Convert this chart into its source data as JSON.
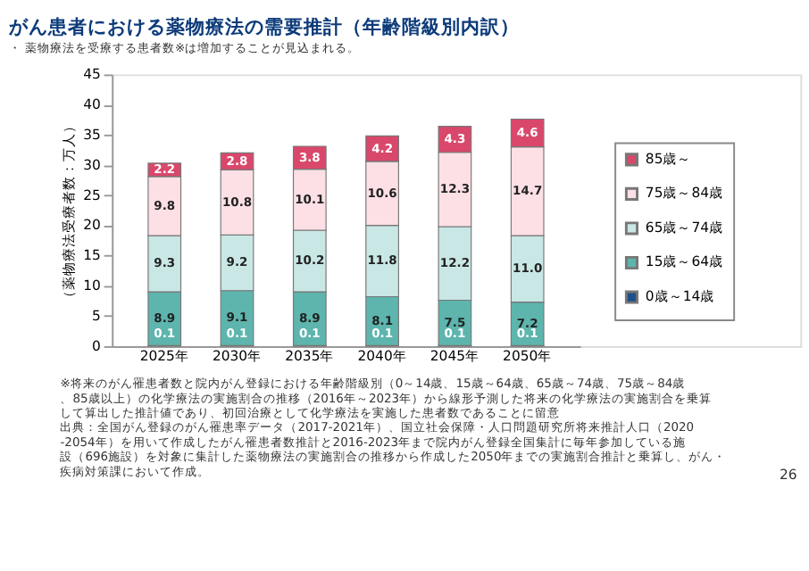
{
  "chart_data": {
    "type": "bar",
    "title": "がん患者における薬物療法の需要推計（年齢階級別内訳）",
    "subtitle": "・ 薬物療法を受療する患者数※は増加することが見込まれる。",
    "ylabel": "（薬物療法受療者数：万人）",
    "categories": [
      "2025年",
      "2030年",
      "2035年",
      "2040年",
      "2045年",
      "2050年"
    ],
    "stacked": true,
    "ylim": [
      0,
      45
    ],
    "yticks": [
      0,
      5,
      10,
      15,
      20,
      25,
      30,
      35,
      40,
      45
    ],
    "grid": false,
    "legend": "right",
    "data_labels": true,
    "series": [
      {
        "name": "0歳～14歳",
        "color": "#1f4e8c",
        "values": [
          0.1,
          0.1,
          0.1,
          0.1,
          0.1,
          0.1
        ]
      },
      {
        "name": "15歳～64歳",
        "color": "#5db5ad",
        "values": [
          8.9,
          9.1,
          8.9,
          8.1,
          7.5,
          7.2
        ]
      },
      {
        "name": "65歳～74歳",
        "color": "#c8e7e5",
        "values": [
          9.3,
          9.2,
          10.2,
          11.8,
          12.2,
          11.0
        ],
        "value_labels": [
          "9.3",
          "9.2",
          "10.2",
          "11.8",
          "12.2",
          "11.0"
        ]
      },
      {
        "name": "75歳～84歳",
        "color": "#fde0e5",
        "values": [
          9.8,
          10.8,
          10.1,
          10.6,
          12.3,
          14.7
        ]
      },
      {
        "name": "85歳～",
        "color": "#d9486b",
        "values": [
          2.2,
          2.8,
          3.8,
          4.2,
          4.3,
          4.6
        ]
      }
    ],
    "annotations": [
      "※将来のがん罹患者数と院内がん登録における年齢階級別（0～14歳、15歳～64歳、65歳～74歳、75歳～84歳、85歳以上）の化学療法の実施割合の推移（2016年～2023年）から線形予測した将来の化学療法の実施割合を乗算して算出した推計値であり、初回治療として化学療法を実施した患者数であることに留意",
      "出典：全国がん登録のがん罹患率データ（2017-2021年）、国立社会保障・人口問題研究所将来推計人口（2020-2054年）を用いて作成したがん罹患者数推計と2016-2023年まで院内がん登録全国集計に毎年参加している施設（696施設）を対象に集計した薬物療法の実施割合の推移から作成した2050年までの実施割合推計と乗算し、がん・疾病対策課において作成。",
      "26"
    ]
  }
}
